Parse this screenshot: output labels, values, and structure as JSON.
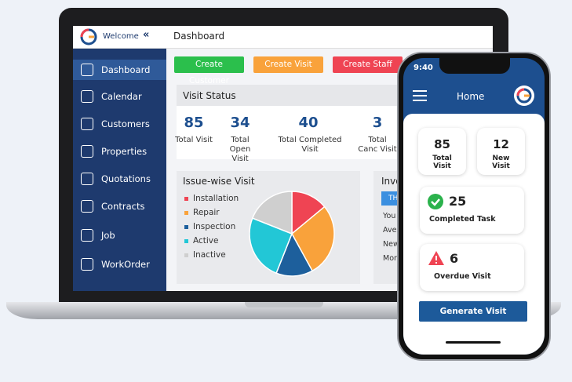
{
  "laptop": {
    "header": {
      "welcome": "Welcome",
      "title": "Dashboard"
    },
    "sidebar": [
      "Dashboard",
      "Calendar",
      "Customers",
      "Properties",
      "Quotations",
      "Contracts",
      "Job",
      "WorkOrder"
    ],
    "buttons": [
      "Create Customer",
      "Create Visit",
      "Create Staff"
    ],
    "visit_status": {
      "title": "Visit Status",
      "stats": [
        {
          "value": 85,
          "label": "Total Visit"
        },
        {
          "value": 34,
          "label": "Total Open Visit"
        },
        {
          "value": 40,
          "label": "Total Completed Visit"
        },
        {
          "value": 3,
          "label": "Total Canc Visit"
        }
      ]
    },
    "issue_chart": {
      "type": "pie",
      "title": "Issue-wise Visit",
      "categories": [
        "Installation",
        "Repair",
        "Inspection",
        "Active",
        "Inactive"
      ],
      "values": [
        14,
        28,
        14,
        25,
        19
      ],
      "colors": [
        "#ef4453",
        "#f9a23b",
        "#1d5f9c",
        "#22c7d6",
        "#cfcfcf"
      ]
    },
    "invoice": {
      "title": "Invo",
      "button": "TH",
      "rows": [
        "You",
        "Aver",
        "New",
        "More"
      ]
    }
  },
  "phone": {
    "time": "9:40",
    "title": "Home",
    "cards": [
      {
        "value": 85,
        "label": "Total Visit"
      },
      {
        "value": 12,
        "label": "New Visit"
      }
    ],
    "completed": {
      "value": 25,
      "label": "Completed Task"
    },
    "overdue": {
      "value": 6,
      "label": "Overdue Visit"
    },
    "button": "Generate Visit"
  }
}
